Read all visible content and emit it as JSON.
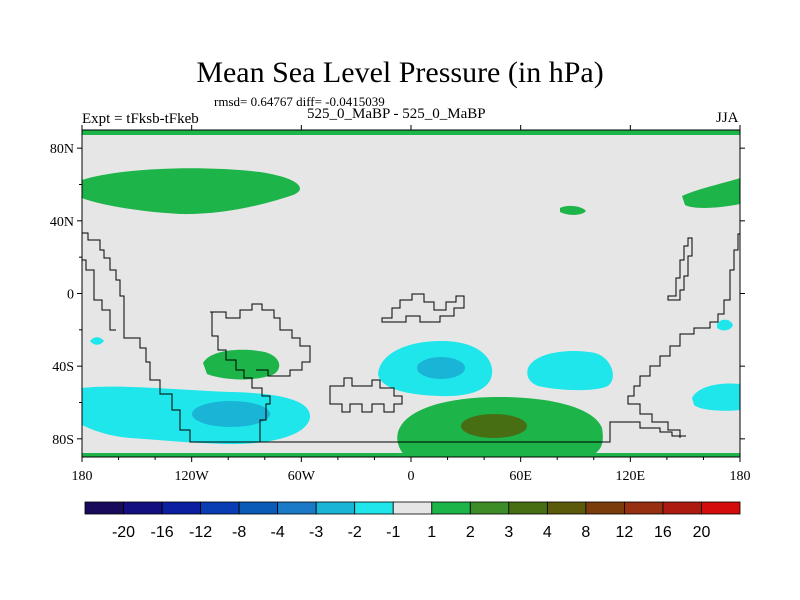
{
  "title": "Mean Sea Level Pressure (in hPa)",
  "stats": "rmsd= 0.64767 diff= -0.0415039",
  "expt": "Expt = tFksb-tFkeb",
  "subtitle": "525_0_MaBP - 525_0_MaBP",
  "season": "JJA",
  "chart_data": {
    "type": "heatmap",
    "variable": "Mean Sea Level Pressure difference",
    "units": "hPa",
    "x_axis": {
      "range": [
        -180,
        180
      ],
      "ticks": [
        -180,
        -120,
        -60,
        0,
        60,
        120,
        180
      ],
      "tick_labels": [
        "180",
        "120W",
        "60W",
        "0",
        "60E",
        "120E",
        "180"
      ]
    },
    "y_axis": {
      "range": [
        -90,
        90
      ],
      "ticks": [
        80,
        40,
        0,
        -40,
        -80
      ],
      "tick_labels": [
        "80N",
        "40N",
        "0",
        "40S",
        "80S"
      ]
    },
    "colorbar": {
      "levels": [
        "-20",
        "-16",
        "-12",
        "-8",
        "-4",
        "-3",
        "-2",
        "-1",
        "1",
        "2",
        "3",
        "4",
        "8",
        "12",
        "16",
        "20"
      ],
      "colors": [
        "#1a0a5c",
        "#140f80",
        "#0b1fa0",
        "#0a3cb4",
        "#0a5ab8",
        "#1a7ac8",
        "#1ab4d6",
        "#1ee6ea",
        "#e6e6e6",
        "#1db44a",
        "#3c8c28",
        "#486e14",
        "#5a5a0a",
        "#7a3c0a",
        "#963010",
        "#ad1a10",
        "#d40c0c"
      ]
    },
    "anomalies": [
      {
        "name": "north-atlantic-positive",
        "lon": -150,
        "lat": 58,
        "level": "1 to 2"
      },
      {
        "name": "asia-small-positive",
        "lon": 90,
        "lat": 47,
        "level": "1 to 2"
      },
      {
        "name": "pacific-north-positive",
        "lon": 165,
        "lat": 54,
        "level": "1 to 2"
      },
      {
        "name": "south-america-positive",
        "lon": -90,
        "lat": -37,
        "level": "1 to 2"
      },
      {
        "name": "south-atlantic-negative",
        "lon": 10,
        "lat": -38,
        "level": "-2 to -1",
        "core": "-3 to -2"
      },
      {
        "name": "indian-ocean-negative",
        "lon": 90,
        "lat": -42,
        "level": "-2 to -1"
      },
      {
        "name": "east-australia-negative",
        "lon": 165,
        "lat": -57,
        "level": "-2 to -1"
      },
      {
        "name": "small-east-negative",
        "lon": 174,
        "lat": -17,
        "level": "-2 to -1"
      },
      {
        "name": "small-west-negative",
        "lon": -173,
        "lat": -25,
        "level": "-2 to -1"
      },
      {
        "name": "southern-ocean-negative",
        "lon": -110,
        "lat": -68,
        "level": "-2 to -1",
        "core": "-3 to -2"
      },
      {
        "name": "southern-ocean-positive",
        "lon": 45,
        "lat": -75,
        "level": "1 to 2",
        "core": "3 to 4"
      }
    ]
  }
}
